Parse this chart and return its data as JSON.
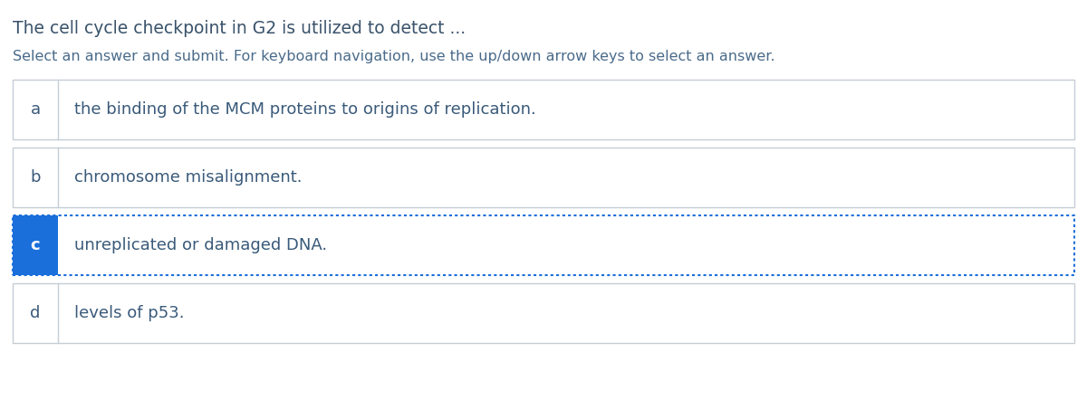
{
  "title": "The cell cycle checkpoint in G2 is utilized to detect ...",
  "subtitle": "Select an answer and submit. For keyboard navigation, use the up/down arrow keys to select an answer.",
  "options": [
    {
      "label": "a",
      "text": "the binding of the MCM proteins to origins of replication.",
      "selected": false
    },
    {
      "label": "b",
      "text": "chromosome misalignment.",
      "selected": false
    },
    {
      "label": "c",
      "text": "unreplicated or damaged DNA.",
      "selected": true
    },
    {
      "label": "d",
      "text": "levels of p53.",
      "selected": false
    }
  ],
  "bg_color": "#ffffff",
  "title_color": "#3a536b",
  "subtitle_color": "#4a6b8a",
  "option_label_color_normal": "#3a5a7a",
  "option_text_color": "#3a5a7a",
  "box_border_color_normal": "#c5cdd6",
  "box_border_color_selected": "#1a6fdb",
  "selected_label_bg": "#1a6fdb",
  "selected_label_text": "#ffffff",
  "title_fontsize": 13.5,
  "subtitle_fontsize": 11.5,
  "option_fontsize": 13,
  "label_fontsize": 13
}
